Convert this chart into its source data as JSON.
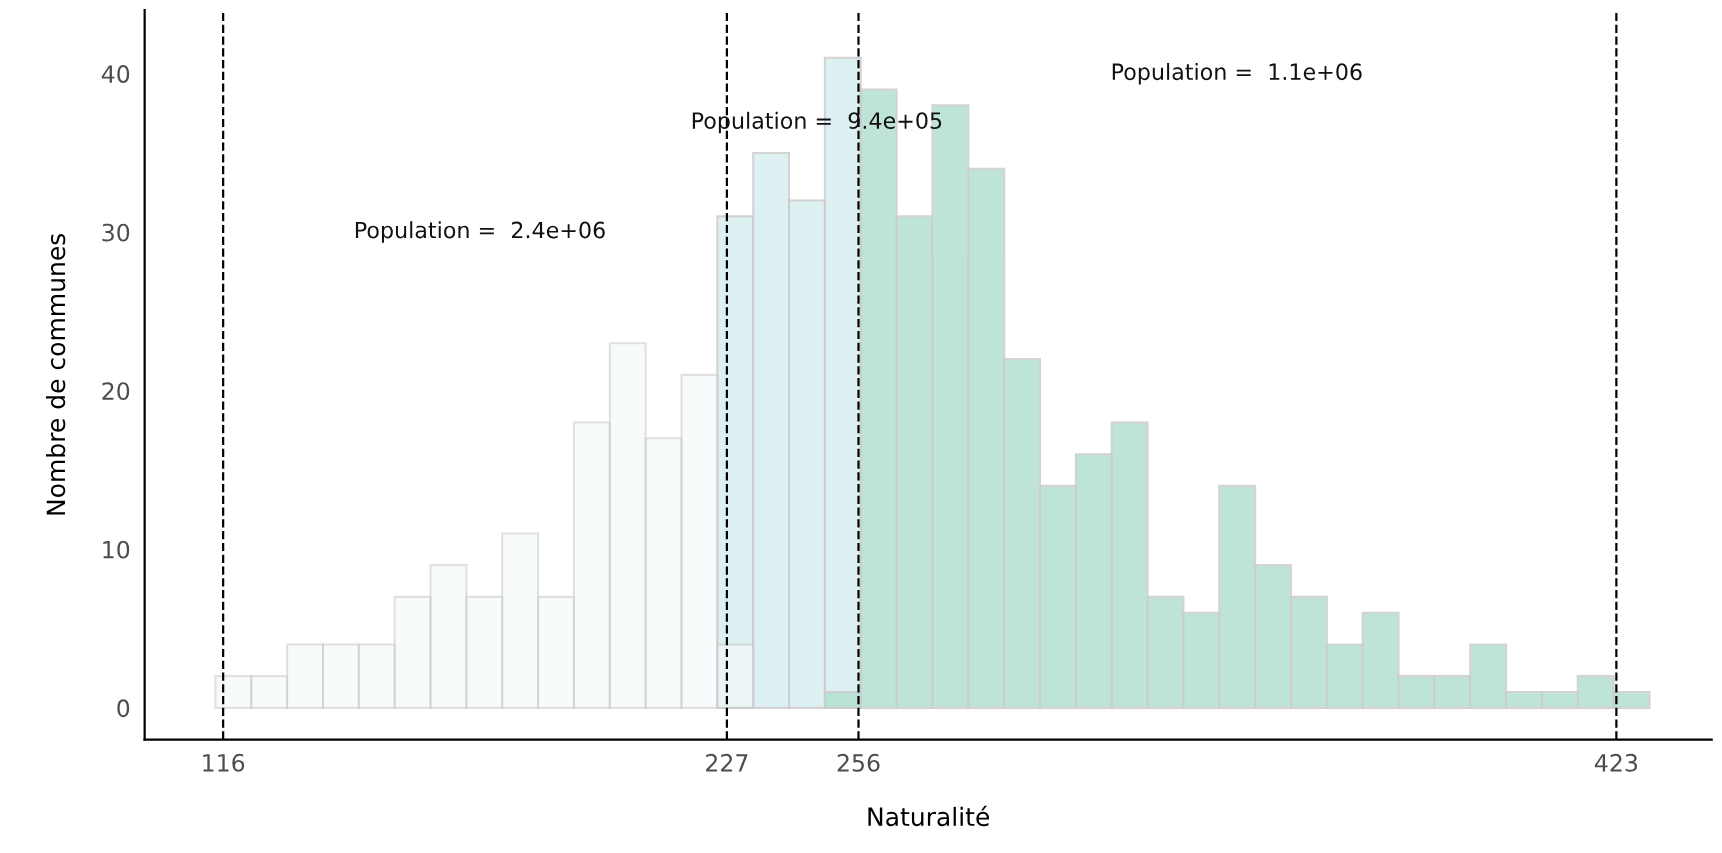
{
  "chart_data": {
    "type": "histogram",
    "xlabel": "Naturalité",
    "ylabel": "Nombre de communes",
    "bins": [
      114.3,
      122.2,
      130.1,
      138,
      145.9,
      153.8,
      161.7,
      169.6,
      177.5,
      185.4,
      193.3,
      201.2,
      209.1,
      217,
      224.9,
      232.8,
      240.7,
      248.6,
      256.5,
      264.4,
      272.3,
      280.2,
      288.1,
      296,
      303.9,
      311.8,
      319.7,
      327.6,
      335.5,
      343.4,
      351.3,
      359.2,
      367.1,
      375,
      382.9,
      390.8,
      398.7,
      406.6,
      414.5,
      422.4,
      430.3
    ],
    "series": [
      {
        "color": "#f5f9fb",
        "values": [
          2,
          2,
          4,
          4,
          4,
          7,
          9,
          7,
          11,
          7,
          18,
          23,
          17,
          21,
          4,
          null,
          null,
          null,
          null,
          null,
          null,
          null,
          null,
          null,
          null,
          null,
          null,
          null,
          null,
          null,
          null,
          null,
          null,
          null,
          null,
          null,
          null,
          null,
          null,
          null
        ]
      },
      {
        "color": "#d8eef0",
        "values": [
          null,
          null,
          null,
          null,
          null,
          null,
          null,
          null,
          null,
          null,
          null,
          null,
          null,
          null,
          31,
          35,
          32,
          41,
          null,
          null,
          null,
          null,
          null,
          null,
          null,
          null,
          null,
          null,
          null,
          null,
          null,
          null,
          null,
          null,
          null,
          null,
          null,
          null,
          null,
          null
        ]
      },
      {
        "color": "#b3e0d2",
        "values": [
          null,
          null,
          null,
          null,
          null,
          null,
          null,
          null,
          null,
          null,
          null,
          null,
          null,
          null,
          null,
          null,
          null,
          1,
          39,
          31,
          38,
          34,
          22,
          14,
          16,
          18,
          7,
          6,
          14,
          9,
          7,
          4,
          6,
          2,
          2,
          4,
          1,
          1,
          2,
          1
        ]
      }
    ],
    "xlim": [
      98.7,
      444
    ],
    "ylim": [
      -2,
      44
    ],
    "xticks": [
      116,
      227,
      256,
      423
    ],
    "yticks": [
      0,
      10,
      20,
      30,
      40
    ],
    "ref_lines": [
      {
        "axis": "x",
        "value": 116,
        "color": "#000000",
        "line_style": "dashed"
      },
      {
        "axis": "x",
        "value": 227,
        "color": "#000000",
        "line_style": "dashed"
      },
      {
        "axis": "x",
        "value": 256,
        "color": "#000000",
        "line_style": "dashed"
      },
      {
        "axis": "x",
        "value": 423,
        "color": "#000000",
        "line_style": "dashed"
      }
    ],
    "annotations": [
      "Population =  2.4e+06",
      "Population =  9.4e+05",
      "Population =  1.1e+06"
    ],
    "grid": false
  }
}
